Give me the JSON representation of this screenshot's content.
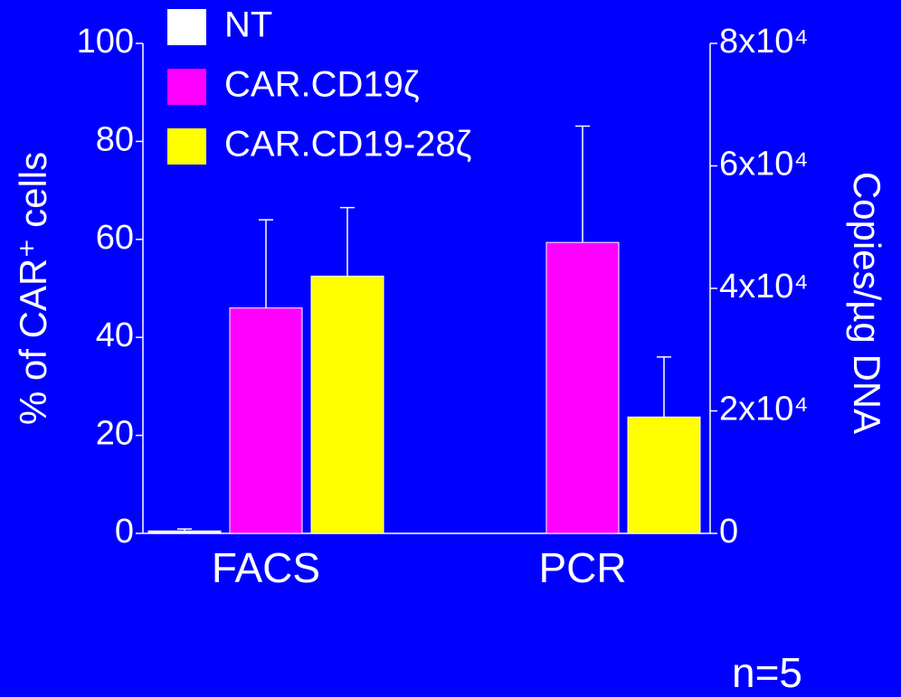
{
  "chart_data": {
    "type": "bar",
    "ylabel": "% of CAR⁺ cells",
    "y2label": "Copies/µg DNA",
    "annotation": "n=5",
    "categories": [
      "FACS",
      "PCR"
    ],
    "category_axis": [
      "y",
      "y2"
    ],
    "series": [
      {
        "name": "NT",
        "color": "#ffffff",
        "values": [
          0.5,
          null
        ],
        "errors": [
          0.4,
          null
        ]
      },
      {
        "name": "CAR.CD19ζ",
        "color": "#ff00ff",
        "values": [
          46,
          47500
        ],
        "errors": [
          18,
          19000
        ]
      },
      {
        "name": "CAR.CD19-28ζ",
        "color": "#ffff00",
        "values": [
          52.5,
          19000
        ],
        "errors": [
          14,
          9800
        ]
      }
    ],
    "ylim": [
      0,
      100
    ],
    "yticks": [
      0,
      20,
      40,
      60,
      80,
      100
    ],
    "y2lim": [
      0,
      80000
    ],
    "y2ticks": [
      0,
      {
        "value": 20000,
        "label": "2x10⁴"
      },
      {
        "value": 40000,
        "label": "4x10⁴"
      },
      {
        "value": 60000,
        "label": "6x10⁴"
      },
      {
        "value": 80000,
        "label": "8x10⁴"
      }
    ],
    "legend": "top-left"
  }
}
